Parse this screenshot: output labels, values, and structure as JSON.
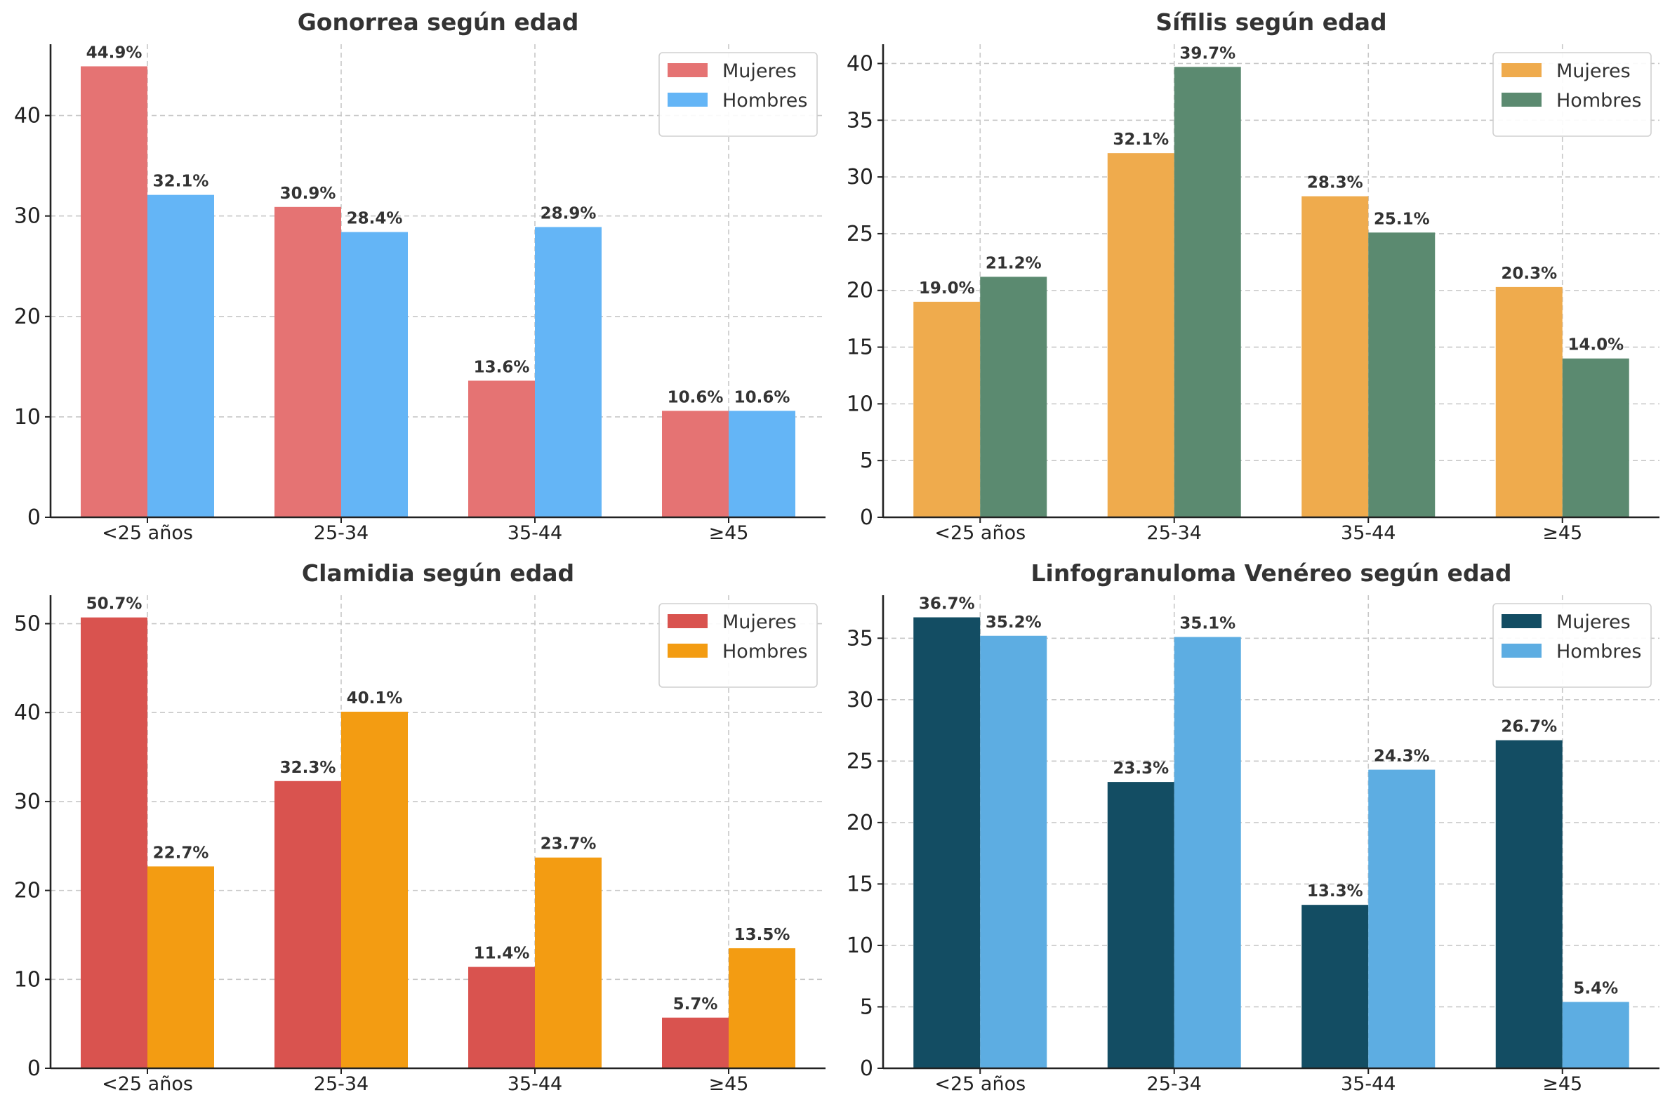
{
  "figure": {
    "label_format": "{v}%"
  },
  "chart_data": [
    {
      "type": "bar",
      "title": "Gonorrea según edad",
      "xlabel": "",
      "ylabel": "",
      "categories": [
        "<25 años",
        "25-34",
        "35-44",
        "≥45"
      ],
      "series": [
        {
          "name": "Mujeres",
          "color": "#e57373",
          "values": [
            44.9,
            30.9,
            13.6,
            10.6
          ]
        },
        {
          "name": "Hombres",
          "color": "#64b5f6",
          "values": [
            32.1,
            28.4,
            28.9,
            10.6
          ]
        }
      ],
      "ylim": [
        0,
        47.1
      ],
      "yticks": [
        0,
        10,
        20,
        30,
        40
      ],
      "grid": true,
      "legend_position": "top-right"
    },
    {
      "type": "bar",
      "title": "Sífilis según edad",
      "xlabel": "",
      "ylabel": "",
      "categories": [
        "<25 años",
        "25-34",
        "35-44",
        "≥45"
      ],
      "series": [
        {
          "name": "Mujeres",
          "color": "#efab4d",
          "values": [
            19.0,
            32.1,
            28.3,
            20.3
          ]
        },
        {
          "name": "Hombres",
          "color": "#5b8a70",
          "values": [
            21.2,
            39.7,
            25.1,
            14.0
          ]
        }
      ],
      "ylim": [
        0,
        41.7
      ],
      "yticks": [
        0,
        5,
        10,
        15,
        20,
        25,
        30,
        35,
        40
      ],
      "grid": true,
      "legend_position": "top-right"
    },
    {
      "type": "bar",
      "title": "Clamidia según edad",
      "xlabel": "",
      "ylabel": "",
      "categories": [
        "<25 años",
        "25-34",
        "35-44",
        "≥45"
      ],
      "series": [
        {
          "name": "Mujeres",
          "color": "#d9534f",
          "values": [
            50.7,
            32.3,
            11.4,
            5.7
          ]
        },
        {
          "name": "Hombres",
          "color": "#f39c12",
          "values": [
            22.7,
            40.1,
            23.7,
            13.5
          ]
        }
      ],
      "ylim": [
        0,
        53.2
      ],
      "yticks": [
        0,
        10,
        20,
        30,
        40,
        50
      ],
      "grid": true,
      "legend_position": "top-right"
    },
    {
      "type": "bar",
      "title": "Linfogranuloma Venéreo según edad",
      "xlabel": "",
      "ylabel": "",
      "categories": [
        "<25 años",
        "25-34",
        "35-44",
        "≥45"
      ],
      "series": [
        {
          "name": "Mujeres",
          "color": "#134d63",
          "values": [
            36.7,
            23.3,
            13.3,
            26.7
          ]
        },
        {
          "name": "Hombres",
          "color": "#5dade2",
          "values": [
            35.2,
            35.1,
            24.3,
            5.4
          ]
        }
      ],
      "ylim": [
        0,
        38.5
      ],
      "yticks": [
        0,
        5,
        10,
        15,
        20,
        25,
        30,
        35
      ],
      "grid": true,
      "legend_position": "top-right"
    }
  ]
}
